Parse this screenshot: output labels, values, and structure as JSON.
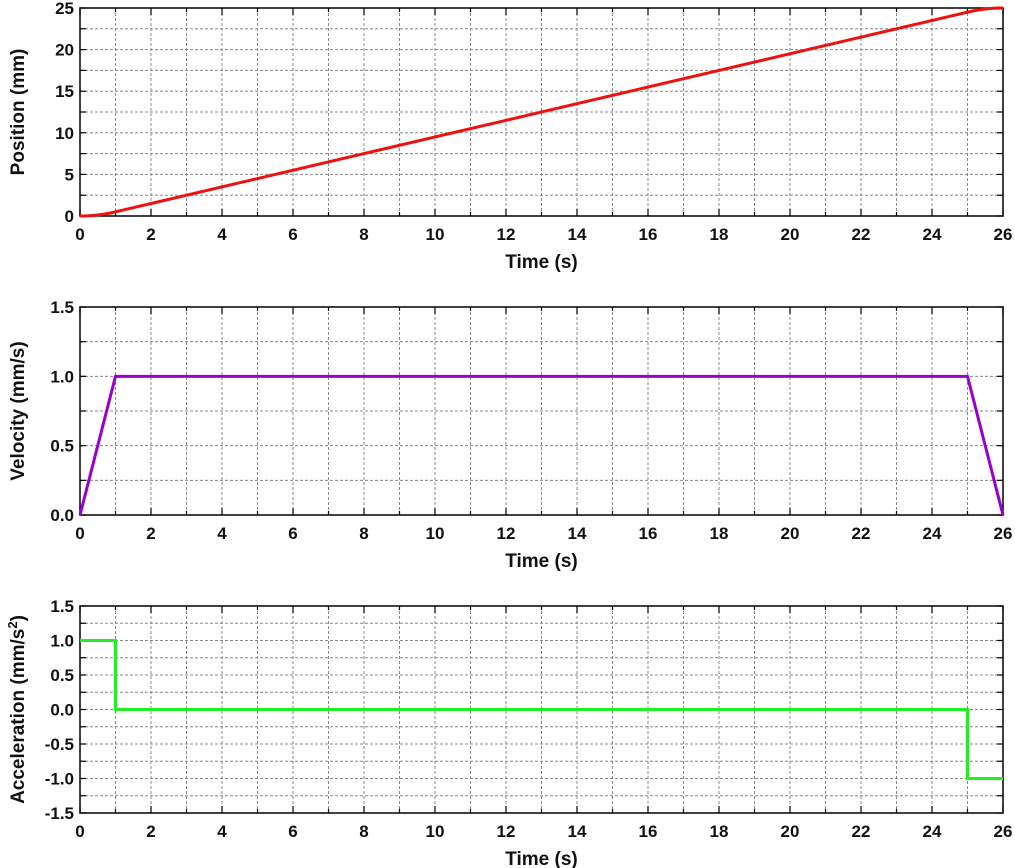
{
  "chart_data": [
    {
      "type": "line",
      "title": "",
      "xlabel": "Time (s)",
      "ylabel": "Position (mm)",
      "xlim": [
        0,
        26
      ],
      "ylim": [
        0,
        25
      ],
      "xticks": [
        0,
        2,
        4,
        6,
        8,
        10,
        12,
        14,
        16,
        18,
        20,
        22,
        24,
        26
      ],
      "yticks": [
        0,
        5,
        10,
        15,
        20,
        25
      ],
      "grid": true,
      "color": "#ee1111",
      "x": [
        0,
        0.25,
        0.5,
        0.75,
        1,
        25,
        25.25,
        25.5,
        25.75,
        26
      ],
      "y": [
        0,
        0.03125,
        0.125,
        0.28125,
        0.5,
        24.5,
        24.71875,
        24.875,
        24.96875,
        25
      ]
    },
    {
      "type": "line",
      "title": "",
      "xlabel": "Time (s)",
      "ylabel": "Velocity (mm/s)",
      "xlim": [
        0,
        26
      ],
      "ylim": [
        0,
        1.5
      ],
      "xticks": [
        0,
        2,
        4,
        6,
        8,
        10,
        12,
        14,
        16,
        18,
        20,
        22,
        24,
        26
      ],
      "yticks": [
        "0.0",
        "0.5",
        "1.0",
        "1.5"
      ],
      "grid": true,
      "color": "#9900cc",
      "x": [
        0,
        1,
        25,
        26
      ],
      "y": [
        0,
        1,
        1,
        0
      ]
    },
    {
      "type": "line",
      "title": "",
      "xlabel": "Time (s)",
      "ylabel": "Acceleration (mm/s²)",
      "xlim": [
        0,
        26
      ],
      "ylim": [
        -1.5,
        1.5
      ],
      "xticks": [
        0,
        2,
        4,
        6,
        8,
        10,
        12,
        14,
        16,
        18,
        20,
        22,
        24,
        26
      ],
      "yticks": [
        "-1.5",
        "-1.0",
        "-0.5",
        "0.0",
        "0.5",
        "1.0",
        "1.5"
      ],
      "grid": true,
      "color": "#22ee22",
      "x": [
        0,
        1,
        1,
        25,
        25,
        26
      ],
      "y": [
        1,
        1,
        0,
        0,
        -1,
        -1
      ]
    }
  ],
  "labels": {
    "x": "Time (s)",
    "pos_y": "Position (mm)",
    "vel_y": "Velocity (mm/s)",
    "acc_y": "Acceleration (mm/s",
    "acc_sup": "2",
    "acc_close": ")"
  }
}
